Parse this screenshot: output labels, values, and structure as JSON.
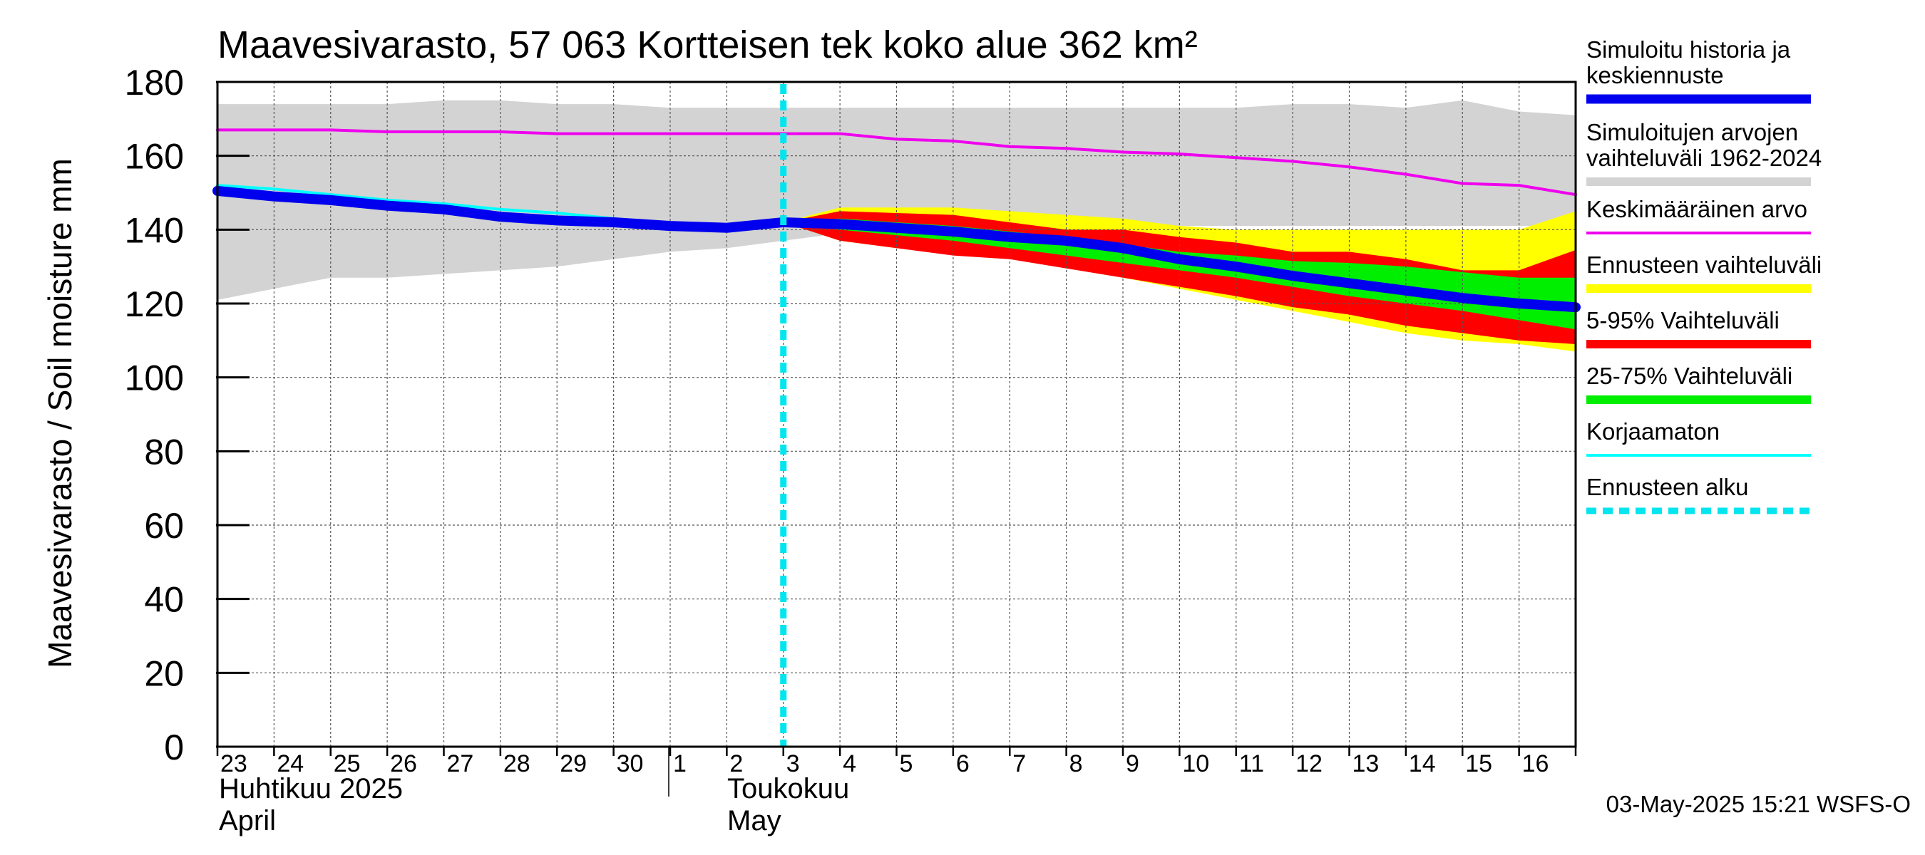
{
  "title": "Maavesivarasto, 57 063 Kortteisen tek koko alue 362 km²",
  "y_axis_label": "Maavesivarasto / Soil moisture   mm",
  "month_labels": [
    {
      "fi": "Huhtikuu  2025",
      "en": "April"
    },
    {
      "fi": "Toukokuu",
      "en": "May"
    }
  ],
  "footer": "03-May-2025 15:21 WSFS-O",
  "legend": [
    {
      "label": "Simuloitu historia ja\nkeskiennuste",
      "color": "#0000ee",
      "style": "thick"
    },
    {
      "label": "Simuloitujen arvojen\nvaihteluväli 1962-2024",
      "color": "#d3d3d3",
      "style": "band"
    },
    {
      "label": "Keskimääräinen arvo",
      "color": "#ee00ee",
      "style": "line"
    },
    {
      "label": "Ennusteen vaihteluväli",
      "color": "#ffff00",
      "style": "band"
    },
    {
      "label": "5-95% Vaihteluväli",
      "color": "#ff0000",
      "style": "band"
    },
    {
      "label": "25-75% Vaihteluväli",
      "color": "#00ee00",
      "style": "band"
    },
    {
      "label": "Korjaamaton",
      "color": "#00ffff",
      "style": "line"
    },
    {
      "label": "Ennusteen alku",
      "color": "#00e5ee",
      "style": "dashed"
    }
  ],
  "chart_data": {
    "type": "line",
    "ylim": [
      0,
      180
    ],
    "xlim": [
      0,
      24
    ],
    "yticks": [
      0,
      20,
      40,
      60,
      80,
      100,
      120,
      140,
      160,
      180
    ],
    "x_tick_labels": [
      "23",
      "24",
      "25",
      "26",
      "27",
      "28",
      "29",
      "30",
      "1",
      "2",
      "3",
      "4",
      "5",
      "6",
      "7",
      "8",
      "9",
      "10",
      "11",
      "12",
      "13",
      "14",
      "15",
      "16"
    ],
    "forecast_start_x": 10.0,
    "grid": true,
    "historical_range": {
      "x": [
        0,
        1,
        2,
        3,
        4,
        5,
        6,
        7,
        8,
        9,
        10,
        11,
        12,
        13,
        14,
        15,
        16,
        17,
        18,
        19,
        20,
        21,
        22,
        23,
        24
      ],
      "lower": [
        121,
        124,
        127,
        127,
        128,
        129,
        130,
        132,
        134,
        135,
        137,
        139,
        140,
        141,
        141,
        141,
        141,
        141,
        141,
        141,
        141,
        141,
        141,
        141,
        141
      ],
      "upper": [
        174,
        174,
        174,
        174,
        175,
        175,
        174,
        174,
        173,
        173,
        173,
        173,
        173,
        173,
        173,
        173,
        173,
        173,
        173,
        174,
        174,
        173,
        175,
        172,
        171
      ]
    },
    "mean": {
      "x": [
        0,
        1,
        2,
        3,
        4,
        5,
        6,
        7,
        8,
        9,
        10,
        11,
        12,
        13,
        14,
        15,
        16,
        17,
        18,
        19,
        20,
        21,
        22,
        23,
        24
      ],
      "y": [
        167,
        167,
        167,
        166.5,
        166.5,
        166.5,
        166,
        166,
        166,
        166,
        166,
        166,
        164.5,
        164,
        162.5,
        162,
        161,
        160.5,
        159.5,
        158.5,
        157,
        155,
        152.5,
        152,
        149.5
      ]
    },
    "uncorrected": {
      "x": [
        0,
        1,
        2,
        3,
        4,
        5,
        6,
        7,
        8,
        9,
        10
      ],
      "y": [
        152,
        151,
        149.5,
        148,
        147,
        145.5,
        144.5,
        143,
        141.5,
        141,
        141.5
      ]
    },
    "forecast_range": {
      "x": [
        10,
        11,
        12,
        13,
        14,
        15,
        16,
        17,
        18,
        19,
        20,
        21,
        22,
        23,
        24
      ],
      "lower": [
        142,
        137,
        135,
        134,
        132,
        130,
        127,
        124,
        121,
        118,
        115,
        112,
        110,
        109,
        107
      ],
      "upper": [
        142,
        146,
        146,
        146,
        145,
        144,
        143,
        141,
        140,
        140,
        140,
        140,
        140,
        140,
        145
      ]
    },
    "p5_95": {
      "x": [
        10,
        11,
        12,
        13,
        14,
        15,
        16,
        17,
        18,
        19,
        20,
        21,
        22,
        23,
        24
      ],
      "lower": [
        142,
        137,
        135,
        133,
        132,
        129.5,
        127,
        124.5,
        122,
        119,
        117,
        114,
        112,
        110,
        109
      ],
      "upper": [
        142,
        145,
        144.5,
        144,
        142,
        140,
        140,
        138,
        136.5,
        134,
        134,
        132,
        129,
        129,
        134.5
      ]
    },
    "p25_75": {
      "x": [
        10,
        11,
        12,
        13,
        14,
        15,
        16,
        17,
        18,
        19,
        20,
        21,
        22,
        23,
        24
      ],
      "lower": [
        142,
        140,
        138.5,
        137,
        135,
        133,
        131,
        129,
        127,
        124.5,
        122,
        120,
        118,
        115.5,
        113
      ],
      "upper": [
        142,
        143,
        142,
        141,
        139.5,
        138,
        136,
        134,
        133,
        131.5,
        131,
        130,
        128.5,
        127,
        127
      ]
    },
    "simulated": {
      "x": [
        0,
        1,
        2,
        3,
        4,
        5,
        6,
        7,
        8,
        9,
        10,
        11,
        12,
        13,
        14,
        15,
        16,
        17,
        18,
        19,
        20,
        21,
        22,
        23,
        24
      ],
      "y": [
        150.5,
        149,
        148,
        146.5,
        145.5,
        143.5,
        142.5,
        142,
        141,
        140.5,
        142,
        141.5,
        140.5,
        139.5,
        138,
        137,
        135,
        132,
        130,
        127.5,
        125.5,
        123.5,
        121.5,
        120,
        119
      ]
    }
  }
}
